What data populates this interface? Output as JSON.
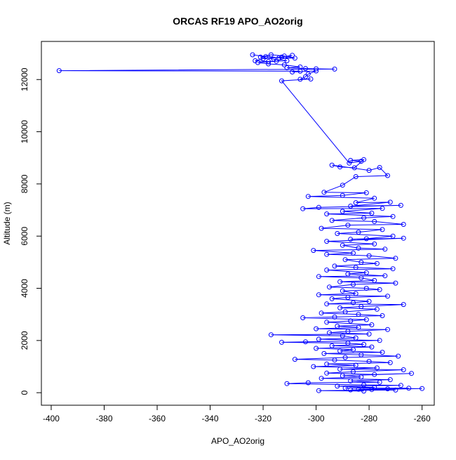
{
  "chart_data": {
    "type": "line",
    "title": "ORCAS RF19 APO_AO2orig",
    "xlabel": "APO_AO2orig",
    "ylabel": "Altitude (m)",
    "xlim": [
      -403.7,
      -255.4
    ],
    "ylim": [
      -480,
      13460
    ],
    "xticks": [
      -400,
      -380,
      -360,
      -340,
      -320,
      -300,
      -280,
      -260
    ],
    "yticks": [
      0,
      2000,
      4000,
      6000,
      8000,
      10000,
      12000
    ],
    "grid": false,
    "legend": "none",
    "series": [
      {
        "color": "#0000ff",
        "marker": "open-circle",
        "line": true,
        "points": [
          [
            -324,
            12950
          ],
          [
            -319,
            12880
          ],
          [
            -314,
            12830
          ],
          [
            -308,
            12820
          ],
          [
            -312,
            12900
          ],
          [
            -317,
            12950
          ],
          [
            -321,
            12860
          ],
          [
            -316,
            12780
          ],
          [
            -311,
            12720
          ],
          [
            -318,
            12690
          ],
          [
            -323,
            12720
          ],
          [
            -320,
            12800
          ],
          [
            -313,
            12860
          ],
          [
            -309,
            12930
          ],
          [
            -315,
            12700
          ],
          [
            -322,
            12650
          ],
          [
            -318,
            12600
          ],
          [
            -312,
            12560
          ],
          [
            -306,
            12480
          ],
          [
            -311,
            12450
          ],
          [
            -304,
            12420
          ],
          [
            -300,
            12410
          ],
          [
            -293,
            12400
          ],
          [
            -397,
            12340
          ],
          [
            -306,
            12320
          ],
          [
            -309,
            12290
          ],
          [
            -300,
            12330
          ],
          [
            -303,
            12210
          ],
          [
            -304,
            12110
          ],
          [
            -306,
            12010
          ],
          [
            -302,
            12020
          ],
          [
            -313,
            11950
          ],
          [
            -287.5,
            8800
          ],
          [
            -283,
            8870
          ],
          [
            -287,
            8900
          ],
          [
            -282,
            8930
          ],
          [
            -285.5,
            8620
          ],
          [
            -291,
            8650
          ],
          [
            -294,
            8720
          ],
          [
            -280,
            8520
          ],
          [
            -276,
            8630
          ],
          [
            -273,
            8320
          ],
          [
            -285,
            8280
          ],
          [
            -290,
            7950
          ],
          [
            -297,
            7680
          ],
          [
            -281,
            7660
          ],
          [
            -290,
            7560
          ],
          [
            -303,
            7520
          ],
          [
            -278,
            7450
          ],
          [
            -285,
            7280
          ],
          [
            -272,
            7300
          ],
          [
            -287,
            7150
          ],
          [
            -268,
            7180
          ],
          [
            -299,
            7100
          ],
          [
            -305,
            7050
          ],
          [
            -275,
            7060
          ],
          [
            -290,
            6950
          ],
          [
            -279,
            6880
          ],
          [
            -296,
            6850
          ],
          [
            -271,
            6750
          ],
          [
            -282,
            6700
          ],
          [
            -294,
            6600
          ],
          [
            -278,
            6560
          ],
          [
            -267,
            6450
          ],
          [
            -288,
            6420
          ],
          [
            -298,
            6300
          ],
          [
            -275,
            6250
          ],
          [
            -284,
            6150
          ],
          [
            -292,
            6100
          ],
          [
            -271,
            6000
          ],
          [
            -281,
            5900
          ],
          [
            -287,
            5880
          ],
          [
            -267,
            5920
          ],
          [
            -296,
            5800
          ],
          [
            -278,
            5700
          ],
          [
            -290,
            5650
          ],
          [
            -284,
            5540
          ],
          [
            -274,
            5500
          ],
          [
            -301,
            5450
          ],
          [
            -286,
            5350
          ],
          [
            -296,
            5300
          ],
          [
            -280,
            5250
          ],
          [
            -270,
            5150
          ],
          [
            -289,
            5100
          ],
          [
            -283,
            5000
          ],
          [
            -277,
            4950
          ],
          [
            -293,
            4850
          ],
          [
            -285,
            4800
          ],
          [
            -271,
            4750
          ],
          [
            -296,
            4700
          ],
          [
            -281,
            4600
          ],
          [
            -288,
            4550
          ],
          [
            -274,
            4480
          ],
          [
            -299,
            4450
          ],
          [
            -283,
            4400
          ],
          [
            -278,
            4300
          ],
          [
            -291,
            4250
          ],
          [
            -270,
            4200
          ],
          [
            -286,
            4150
          ],
          [
            -295,
            4050
          ],
          [
            -281,
            4000
          ],
          [
            -276,
            3950
          ],
          [
            -290,
            3900
          ],
          [
            -285,
            3800
          ],
          [
            -299,
            3750
          ],
          [
            -273,
            3700
          ],
          [
            -288,
            3650
          ],
          [
            -294,
            3600
          ],
          [
            -280,
            3500
          ],
          [
            -286,
            3450
          ],
          [
            -296,
            3400
          ],
          [
            -267,
            3380
          ],
          [
            -283,
            3300
          ],
          [
            -291,
            3250
          ],
          [
            -277,
            3200
          ],
          [
            -289,
            3100
          ],
          [
            -298,
            3050
          ],
          [
            -284,
            3000
          ],
          [
            -275,
            2950
          ],
          [
            -293,
            2900
          ],
          [
            -305,
            2870
          ],
          [
            -281,
            2800
          ],
          [
            -287,
            2750
          ],
          [
            -296,
            2700
          ],
          [
            -279,
            2600
          ],
          [
            -292,
            2550
          ],
          [
            -284,
            2500
          ],
          [
            -300,
            2450
          ],
          [
            -273,
            2420
          ],
          [
            -288,
            2350
          ],
          [
            -295,
            2300
          ],
          [
            -280,
            2250
          ],
          [
            -317,
            2220
          ],
          [
            -290,
            2180
          ],
          [
            -285,
            2100
          ],
          [
            -299,
            2050
          ],
          [
            -276,
            2000
          ],
          [
            -304,
            1950
          ],
          [
            -313,
            1930
          ],
          [
            -288,
            1900
          ],
          [
            -282,
            1850
          ],
          [
            -294,
            1800
          ],
          [
            -279,
            1750
          ],
          [
            -300,
            1700
          ],
          [
            -286,
            1650
          ],
          [
            -291,
            1600
          ],
          [
            -275,
            1550
          ],
          [
            -297,
            1500
          ],
          [
            -283,
            1450
          ],
          [
            -269,
            1400
          ],
          [
            -289,
            1350
          ],
          [
            -308,
            1280
          ],
          [
            -293,
            1250
          ],
          [
            -280,
            1200
          ],
          [
            -272,
            1150
          ],
          [
            -296,
            1100
          ],
          [
            -285,
            1050
          ],
          [
            -301,
            1000
          ],
          [
            -277,
            950
          ],
          [
            -291,
            900
          ],
          [
            -267,
            880
          ],
          [
            -286,
            800
          ],
          [
            -296,
            750
          ],
          [
            -278,
            700
          ],
          [
            -264,
            740
          ],
          [
            -290,
            650
          ],
          [
            -283,
            600
          ],
          [
            -298,
            550
          ],
          [
            -272,
            500
          ],
          [
            -287,
            450
          ],
          [
            -276,
            400
          ],
          [
            -303,
            380
          ],
          [
            -311,
            350
          ],
          [
            -282,
            300
          ],
          [
            -268,
            280
          ],
          [
            -292,
            250
          ],
          [
            -278,
            200
          ],
          [
            -289,
            180
          ],
          [
            -265,
            170
          ],
          [
            -273,
            150
          ],
          [
            -284,
            130
          ],
          [
            -260,
            160
          ],
          [
            -279,
            120
          ],
          [
            -287,
            110
          ],
          [
            -270,
            100
          ],
          [
            -299,
            80
          ],
          [
            -282,
            60
          ]
        ]
      }
    ]
  }
}
